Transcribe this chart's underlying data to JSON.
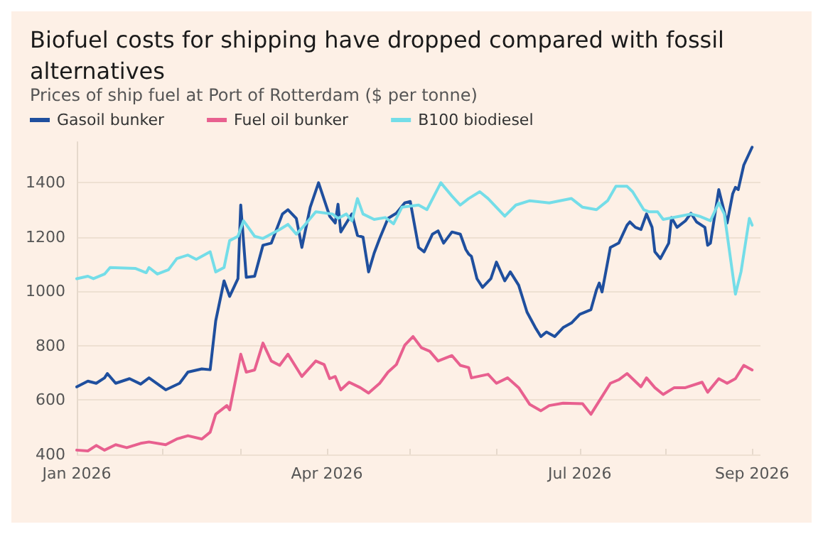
{
  "chart_data": {
    "type": "line",
    "title": "Biofuel costs for shipping have dropped compared with fossil alternatives",
    "subtitle": "Prices of ship fuel at Port of Rotterdam ($ per tonne)",
    "xlim": [
      "2026-01-01",
      "2026-09-04"
    ],
    "xticks": [
      {
        "value": "2026-01-01",
        "label": "Jan 2026"
      },
      {
        "value": "2026-02-01",
        "label": null
      },
      {
        "value": "2026-03-01",
        "label": null
      },
      {
        "value": "2026-04-01",
        "label": "Apr 2026"
      },
      {
        "value": "2026-05-01",
        "label": null
      },
      {
        "value": "2026-06-01",
        "label": null
      },
      {
        "value": "2026-07-01",
        "label": "Jul 2026"
      },
      {
        "value": "2026-08-01",
        "label": null
      },
      {
        "value": "2026-09-01",
        "label": "Sep 2026"
      }
    ],
    "ylim": [
      400,
      1550
    ],
    "yticks": [
      400,
      600,
      800,
      1000,
      1200,
      1400
    ],
    "grid": "y",
    "legend": "top left",
    "marker": "none",
    "line_style": "solid",
    "series": [
      {
        "name": "Gasoil bunker",
        "color": "#1f4f9e",
        "x": [
          "2026-01-01",
          "2026-01-05",
          "2026-01-08",
          "2026-01-11",
          "2026-01-12",
          "2026-01-15",
          "2026-01-20",
          "2026-01-24",
          "2026-01-27",
          "2026-02-02",
          "2026-02-07",
          "2026-02-10",
          "2026-02-15",
          "2026-02-18",
          "2026-02-20",
          "2026-02-23",
          "2026-02-25",
          "2026-02-28",
          "2026-03-01",
          "2026-03-03",
          "2026-03-06",
          "2026-03-09",
          "2026-03-12",
          "2026-03-16",
          "2026-03-18",
          "2026-03-21",
          "2026-03-23",
          "2026-03-26",
          "2026-03-29",
          "2026-04-02",
          "2026-04-04",
          "2026-04-05",
          "2026-04-06",
          "2026-04-08",
          "2026-04-10",
          "2026-04-12",
          "2026-04-14",
          "2026-04-16",
          "2026-04-18",
          "2026-04-20",
          "2026-04-23",
          "2026-04-26",
          "2026-04-29",
          "2026-05-01",
          "2026-05-04",
          "2026-05-06",
          "2026-05-09",
          "2026-05-11",
          "2026-05-13",
          "2026-05-16",
          "2026-05-19",
          "2026-05-21",
          "2026-05-22",
          "2026-05-23",
          "2026-05-25",
          "2026-05-27",
          "2026-05-30",
          "2026-06-01",
          "2026-06-04",
          "2026-06-06",
          "2026-06-09",
          "2026-06-12",
          "2026-06-15",
          "2026-06-17",
          "2026-06-19",
          "2026-06-22",
          "2026-06-25",
          "2026-06-28",
          "2026-07-01",
          "2026-07-05",
          "2026-07-07",
          "2026-07-08",
          "2026-07-09",
          "2026-07-12",
          "2026-07-15",
          "2026-07-18",
          "2026-07-19",
          "2026-07-21",
          "2026-07-23",
          "2026-07-25",
          "2026-07-27",
          "2026-07-28",
          "2026-07-30",
          "2026-08-02",
          "2026-08-03",
          "2026-08-05",
          "2026-08-08",
          "2026-08-10",
          "2026-08-12",
          "2026-08-15",
          "2026-08-16",
          "2026-08-17",
          "2026-08-20",
          "2026-08-23",
          "2026-08-25",
          "2026-08-26",
          "2026-08-27",
          "2026-08-29",
          "2026-09-01"
        ],
        "values": [
          649,
          670,
          662,
          682,
          698,
          662,
          679,
          659,
          682,
          638,
          662,
          703,
          715,
          712,
          892,
          1039,
          982,
          1047,
          1318,
          1052,
          1056,
          1170,
          1178,
          1285,
          1301,
          1269,
          1162,
          1310,
          1400,
          1277,
          1252,
          1321,
          1219,
          1252,
          1285,
          1206,
          1200,
          1072,
          1141,
          1195,
          1269,
          1288,
          1326,
          1331,
          1162,
          1146,
          1211,
          1223,
          1178,
          1219,
          1211,
          1154,
          1138,
          1129,
          1047,
          1015,
          1047,
          1108,
          1039,
          1072,
          1023,
          924,
          867,
          834,
          851,
          834,
          867,
          884,
          916,
          933,
          1006,
          1031,
          998,
          1162,
          1178,
          1244,
          1256,
          1236,
          1228,
          1285,
          1236,
          1146,
          1121,
          1178,
          1272,
          1236,
          1260,
          1288,
          1256,
          1236,
          1170,
          1178,
          1375,
          1252,
          1359,
          1383,
          1375,
          1465,
          1531
        ]
      },
      {
        "name": "Fuel oil bunker",
        "color": "#e8608f",
        "x": [
          "2026-01-01",
          "2026-01-05",
          "2026-01-08",
          "2026-01-11",
          "2026-01-15",
          "2026-01-19",
          "2026-01-24",
          "2026-01-27",
          "2026-02-02",
          "2026-02-06",
          "2026-02-10",
          "2026-02-15",
          "2026-02-18",
          "2026-02-20",
          "2026-02-24",
          "2026-02-25",
          "2026-03-01",
          "2026-03-03",
          "2026-03-06",
          "2026-03-09",
          "2026-03-12",
          "2026-03-15",
          "2026-03-18",
          "2026-03-23",
          "2026-03-28",
          "2026-03-31",
          "2026-04-02",
          "2026-04-04",
          "2026-04-06",
          "2026-04-09",
          "2026-04-13",
          "2026-04-16",
          "2026-04-20",
          "2026-04-23",
          "2026-04-26",
          "2026-04-29",
          "2026-05-02",
          "2026-05-05",
          "2026-05-08",
          "2026-05-11",
          "2026-05-16",
          "2026-05-19",
          "2026-05-22",
          "2026-05-23",
          "2026-05-29",
          "2026-06-01",
          "2026-06-05",
          "2026-06-09",
          "2026-06-13",
          "2026-06-17",
          "2026-06-20",
          "2026-06-25",
          "2026-07-02",
          "2026-07-05",
          "2026-07-08",
          "2026-07-12",
          "2026-07-15",
          "2026-07-18",
          "2026-07-23",
          "2026-07-25",
          "2026-07-28",
          "2026-07-31",
          "2026-08-04",
          "2026-08-08",
          "2026-08-14",
          "2026-08-16",
          "2026-08-20",
          "2026-08-23",
          "2026-08-26",
          "2026-08-29",
          "2026-09-01"
        ],
        "values": [
          416,
          413,
          433,
          416,
          436,
          425,
          441,
          446,
          436,
          457,
          469,
          457,
          482,
          548,
          580,
          564,
          769,
          703,
          711,
          810,
          744,
          728,
          769,
          687,
          744,
          731,
          679,
          687,
          638,
          666,
          646,
          626,
          662,
          703,
          731,
          802,
          834,
          793,
          780,
          744,
          764,
          728,
          720,
          682,
          695,
          662,
          682,
          646,
          584,
          561,
          580,
          589,
          587,
          548,
          597,
          662,
          675,
          698,
          649,
          682,
          646,
          621,
          646,
          646,
          666,
          629,
          679,
          662,
          679,
          728,
          711
        ]
      },
      {
        "name": "B100 biodiesel",
        "color": "#74dde8",
        "x": [
          "2026-01-01",
          "2026-01-05",
          "2026-01-07",
          "2026-01-11",
          "2026-01-13",
          "2026-01-22",
          "2026-01-26",
          "2026-01-27",
          "2026-01-30",
          "2026-02-03",
          "2026-02-06",
          "2026-02-10",
          "2026-02-13",
          "2026-02-18",
          "2026-02-20",
          "2026-02-23",
          "2026-02-25",
          "2026-02-28",
          "2026-03-02",
          "2026-03-06",
          "2026-03-09",
          "2026-03-15",
          "2026-03-18",
          "2026-03-21",
          "2026-03-24",
          "2026-03-28",
          "2026-04-03",
          "2026-04-05",
          "2026-04-08",
          "2026-04-10",
          "2026-04-12",
          "2026-04-14",
          "2026-04-18",
          "2026-04-22",
          "2026-04-25",
          "2026-04-28",
          "2026-05-04",
          "2026-05-07",
          "2026-05-12",
          "2026-05-16",
          "2026-05-19",
          "2026-05-22",
          "2026-05-26",
          "2026-05-29",
          "2026-06-04",
          "2026-06-08",
          "2026-06-13",
          "2026-06-20",
          "2026-06-28",
          "2026-07-02",
          "2026-07-07",
          "2026-07-11",
          "2026-07-14",
          "2026-07-18",
          "2026-07-20",
          "2026-07-24",
          "2026-07-26",
          "2026-07-29",
          "2026-07-31",
          "2026-08-06",
          "2026-08-10",
          "2026-08-13",
          "2026-08-17",
          "2026-08-20",
          "2026-08-22",
          "2026-08-26",
          "2026-08-28",
          "2026-08-31",
          "2026-09-01"
        ],
        "values": [
          1047,
          1056,
          1047,
          1064,
          1088,
          1085,
          1069,
          1088,
          1064,
          1080,
          1121,
          1134,
          1118,
          1146,
          1072,
          1088,
          1187,
          1203,
          1260,
          1203,
          1195,
          1228,
          1247,
          1211,
          1244,
          1293,
          1285,
          1269,
          1285,
          1260,
          1342,
          1285,
          1265,
          1272,
          1249,
          1310,
          1318,
          1301,
          1400,
          1351,
          1318,
          1342,
          1367,
          1342,
          1277,
          1318,
          1334,
          1326,
          1342,
          1310,
          1301,
          1334,
          1387,
          1387,
          1367,
          1301,
          1293,
          1293,
          1265,
          1277,
          1285,
          1277,
          1260,
          1326,
          1285,
          990,
          1072,
          1269,
          1244
        ]
      }
    ]
  }
}
